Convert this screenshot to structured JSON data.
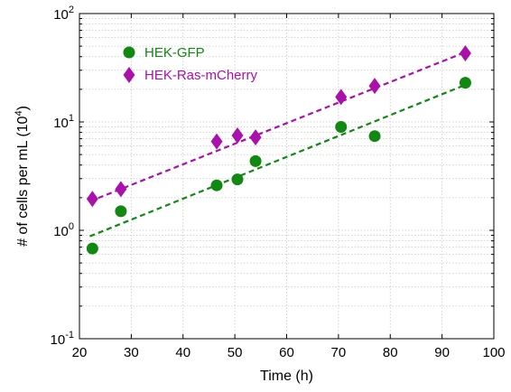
{
  "chart_data": {
    "type": "scatter",
    "xlabel": "Time (h)",
    "ylabel": "# of cells per mL (10",
    "ylabel_exponent": "4",
    "ylabel_suffix": ")",
    "xlim": [
      20,
      100
    ],
    "ylim": [
      0.1,
      100
    ],
    "yscale": "log",
    "grid": true,
    "legend_position": "top-left",
    "x_ticks": [
      "20",
      "30",
      "40",
      "50",
      "60",
      "70",
      "80",
      "90",
      "100"
    ],
    "y_ticks": [
      {
        "base": "10",
        "exp": "-1"
      },
      {
        "base": "10",
        "exp": "0"
      },
      {
        "base": "10",
        "exp": "1"
      },
      {
        "base": "10",
        "exp": "2"
      }
    ],
    "series": [
      {
        "name": "HEK-GFP",
        "color": "#118811",
        "marker": "circle",
        "x": [
          22.5,
          28,
          46.5,
          50.5,
          54,
          70.5,
          77,
          94.5
        ],
        "y": [
          0.68,
          1.5,
          2.6,
          2.95,
          4.35,
          9.0,
          7.4,
          23
        ],
        "fit": {
          "x": [
            22,
            94.5
          ],
          "y": [
            0.88,
            22
          ]
        }
      },
      {
        "name": "HEK-Ras-mCherry",
        "color": "#aa11aa",
        "marker": "diamond",
        "x": [
          22.5,
          28,
          46.5,
          50.5,
          54,
          70.5,
          77,
          94.5
        ],
        "y": [
          1.95,
          2.4,
          6.6,
          7.5,
          7.2,
          17,
          21.5,
          43
        ],
        "fit": {
          "x": [
            22,
            94.5
          ],
          "y": [
            1.85,
            44
          ]
        }
      }
    ]
  }
}
